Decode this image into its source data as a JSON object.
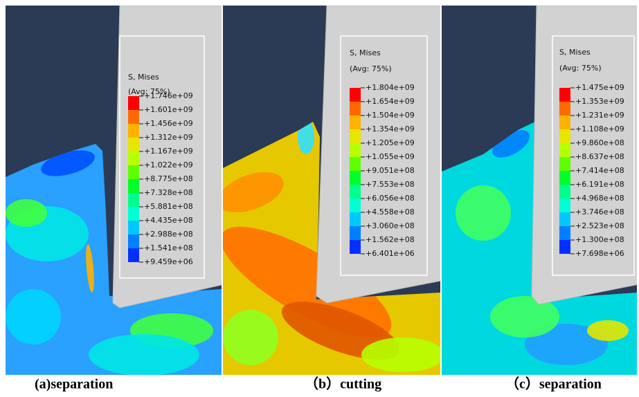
{
  "panels": [
    {
      "legend_title": "S, Mises",
      "legend_subtitle": "(Avg: 75%)",
      "legend_labels": [
        "+1.746e+09",
        "+1.601e+09",
        "+1.456e+09",
        "+1.312e+09",
        "+1.167e+09",
        "+1.022e+09",
        "+8.775e+08",
        "+7.328e+08",
        "+5.881e+08",
        "+4.435e+08",
        "+2.988e+08",
        "+1.541e+08",
        "+9.459e+06"
      ],
      "caption": "(a)separation"
    },
    {
      "legend_title": "S, Mises",
      "legend_subtitle": "(Avg: 75%)",
      "legend_labels": [
        "+1.804e+09",
        "+1.654e+09",
        "+1.504e+09",
        "+1.354e+09",
        "+1.205e+09",
        "+1.055e+09",
        "+9.051e+08",
        "+7.553e+08",
        "+6.056e+08",
        "+4.558e+08",
        "+3.060e+08",
        "+1.562e+08",
        "+6.401e+06"
      ],
      "caption": "（b）cutting"
    },
    {
      "legend_title": "S, Mises",
      "legend_subtitle": "(Avg: 75%)",
      "legend_labels": [
        "+1.475e+09",
        "+1.353e+09",
        "+1.231e+09",
        "+1.108e+09",
        "+9.860e+08",
        "+8.637e+08",
        "+7.414e+08",
        "+6.191e+08",
        "+4.968e+08",
        "+3.746e+08",
        "+2.523e+08",
        "+1.300e+08",
        "+7.698e+06"
      ],
      "caption": "（c）separation"
    }
  ]
}
